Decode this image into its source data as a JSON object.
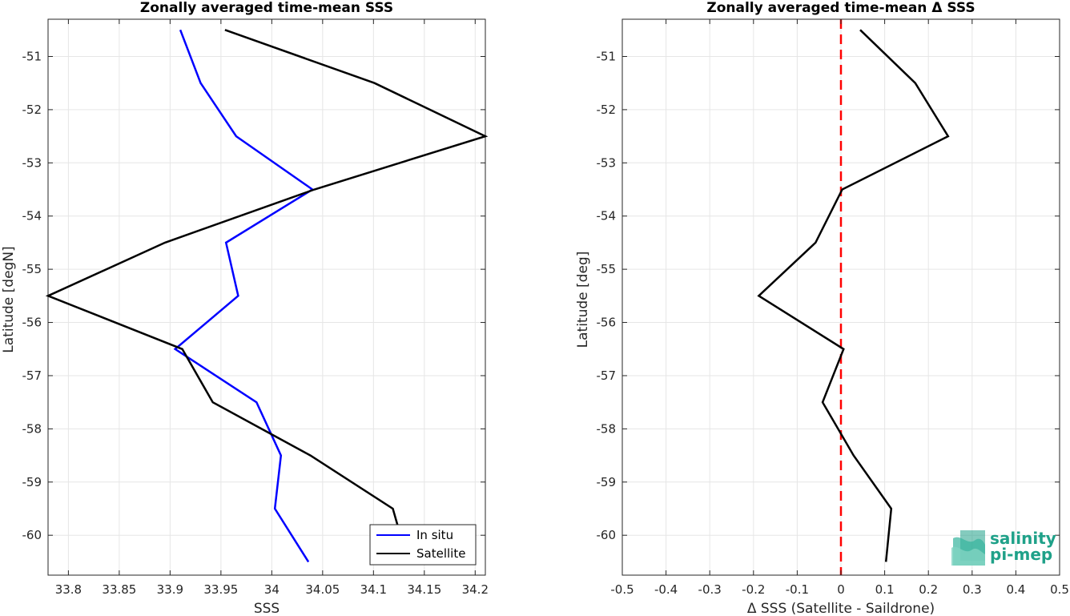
{
  "chart_data": [
    {
      "type": "line",
      "title": "Zonally averaged time-mean SSS",
      "xlabel": "SSS",
      "ylabel": "Latitude [degN]",
      "xlim": [
        33.78,
        34.21
      ],
      "ylim": [
        -60.75,
        -50.3
      ],
      "xticks": [
        33.8,
        33.85,
        33.9,
        33.95,
        34,
        34.05,
        34.1,
        34.15,
        34.2
      ],
      "xtick_labels": [
        "33.8",
        "33.85",
        "33.9",
        "33.95",
        "34",
        "34.05",
        "34.1",
        "34.15",
        "34.2"
      ],
      "yticks": [
        -51,
        -52,
        -53,
        -54,
        -55,
        -56,
        -57,
        -58,
        -59,
        -60
      ],
      "ytick_labels": [
        "-51",
        "-52",
        "-53",
        "-54",
        "-55",
        "-56",
        "-57",
        "-58",
        "-59",
        "-60"
      ],
      "grid": true,
      "legend": "bottom-right",
      "series": [
        {
          "name": "In situ",
          "color": "#0000ff",
          "points": [
            [
              33.91,
              -50.5
            ],
            [
              33.93,
              -51.5
            ],
            [
              33.965,
              -52.5
            ],
            [
              34.04,
              -53.5
            ],
            [
              33.955,
              -54.5
            ],
            [
              33.967,
              -55.5
            ],
            [
              33.905,
              -56.5
            ],
            [
              33.985,
              -57.5
            ],
            [
              34.009,
              -58.5
            ],
            [
              34.003,
              -59.5
            ],
            [
              34.036,
              -60.5
            ]
          ]
        },
        {
          "name": "Satellite",
          "color": "#000000",
          "points": [
            [
              33.954,
              -50.5
            ],
            [
              34.101,
              -51.5
            ],
            [
              34.21,
              -52.5
            ],
            [
              34.042,
              -53.5
            ],
            [
              33.895,
              -54.5
            ],
            [
              33.78,
              -55.5
            ],
            [
              33.912,
              -56.5
            ],
            [
              33.942,
              -57.5
            ],
            [
              34.038,
              -58.5
            ],
            [
              34.119,
              -59.5
            ],
            [
              34.125,
              -59.9
            ]
          ]
        }
      ]
    },
    {
      "type": "line",
      "title": "Zonally averaged time-mean Δ SSS",
      "xlabel": "Δ SSS (Satellite - Saildrone)",
      "ylabel": "Latitude [deg]",
      "xlim": [
        -0.5,
        0.5
      ],
      "ylim": [
        -60.75,
        -50.3
      ],
      "xticks": [
        -0.5,
        -0.4,
        -0.3,
        -0.2,
        -0.1,
        0,
        0.1,
        0.2,
        0.3,
        0.4,
        0.5
      ],
      "xtick_labels": [
        "-0.5",
        "-0.4",
        "-0.3",
        "-0.2",
        "-0.1",
        "0",
        "0.1",
        "0.2",
        "0.3",
        "0.4",
        "0.5"
      ],
      "yticks": [
        -51,
        -52,
        -53,
        -54,
        -55,
        -56,
        -57,
        -58,
        -59,
        -60
      ],
      "ytick_labels": [
        "-51",
        "-52",
        "-53",
        "-54",
        "-55",
        "-56",
        "-57",
        "-58",
        "-59",
        "-60"
      ],
      "grid": true,
      "reference_line": {
        "x": 0,
        "color": "#ff0000",
        "style": "dashed"
      },
      "series": [
        {
          "color": "#000000",
          "points": [
            [
              0.044,
              -50.5
            ],
            [
              0.17,
              -51.5
            ],
            [
              0.245,
              -52.5
            ],
            [
              0.003,
              -53.5
            ],
            [
              -0.058,
              -54.5
            ],
            [
              -0.188,
              -55.5
            ],
            [
              0.006,
              -56.5
            ],
            [
              -0.042,
              -57.5
            ],
            [
              0.029,
              -58.5
            ],
            [
              0.115,
              -59.5
            ],
            [
              0.103,
              -60.5
            ]
          ]
        }
      ]
    }
  ],
  "logo": {
    "line1": "salinity",
    "line2": "pi-mep",
    "color": "#1fa189"
  }
}
